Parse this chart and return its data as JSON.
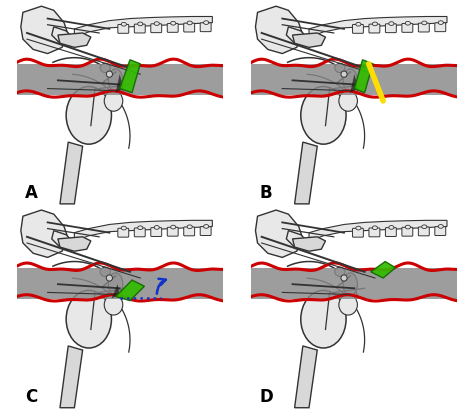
{
  "figsize": [
    4.74,
    4.16
  ],
  "dpi": 100,
  "background_color": "#ffffff",
  "panels": [
    "A",
    "B",
    "C",
    "D"
  ],
  "panel_label_fontsize": 12,
  "panel_label_color": "#000000",
  "panel_label_bold": true,
  "gray_band_color": "#888888",
  "gray_band_alpha": 0.82,
  "red_line_color": "#cc0000",
  "red_lw": 2.2,
  "green_color": "#33bb00",
  "yellow_color": "#ffdd00",
  "blue_color": "#1133cc",
  "bone_outline": "#333333",
  "bone_fill": "#e8e8e8",
  "bone_fill2": "#d8d8d8",
  "line_lw": 1.0
}
